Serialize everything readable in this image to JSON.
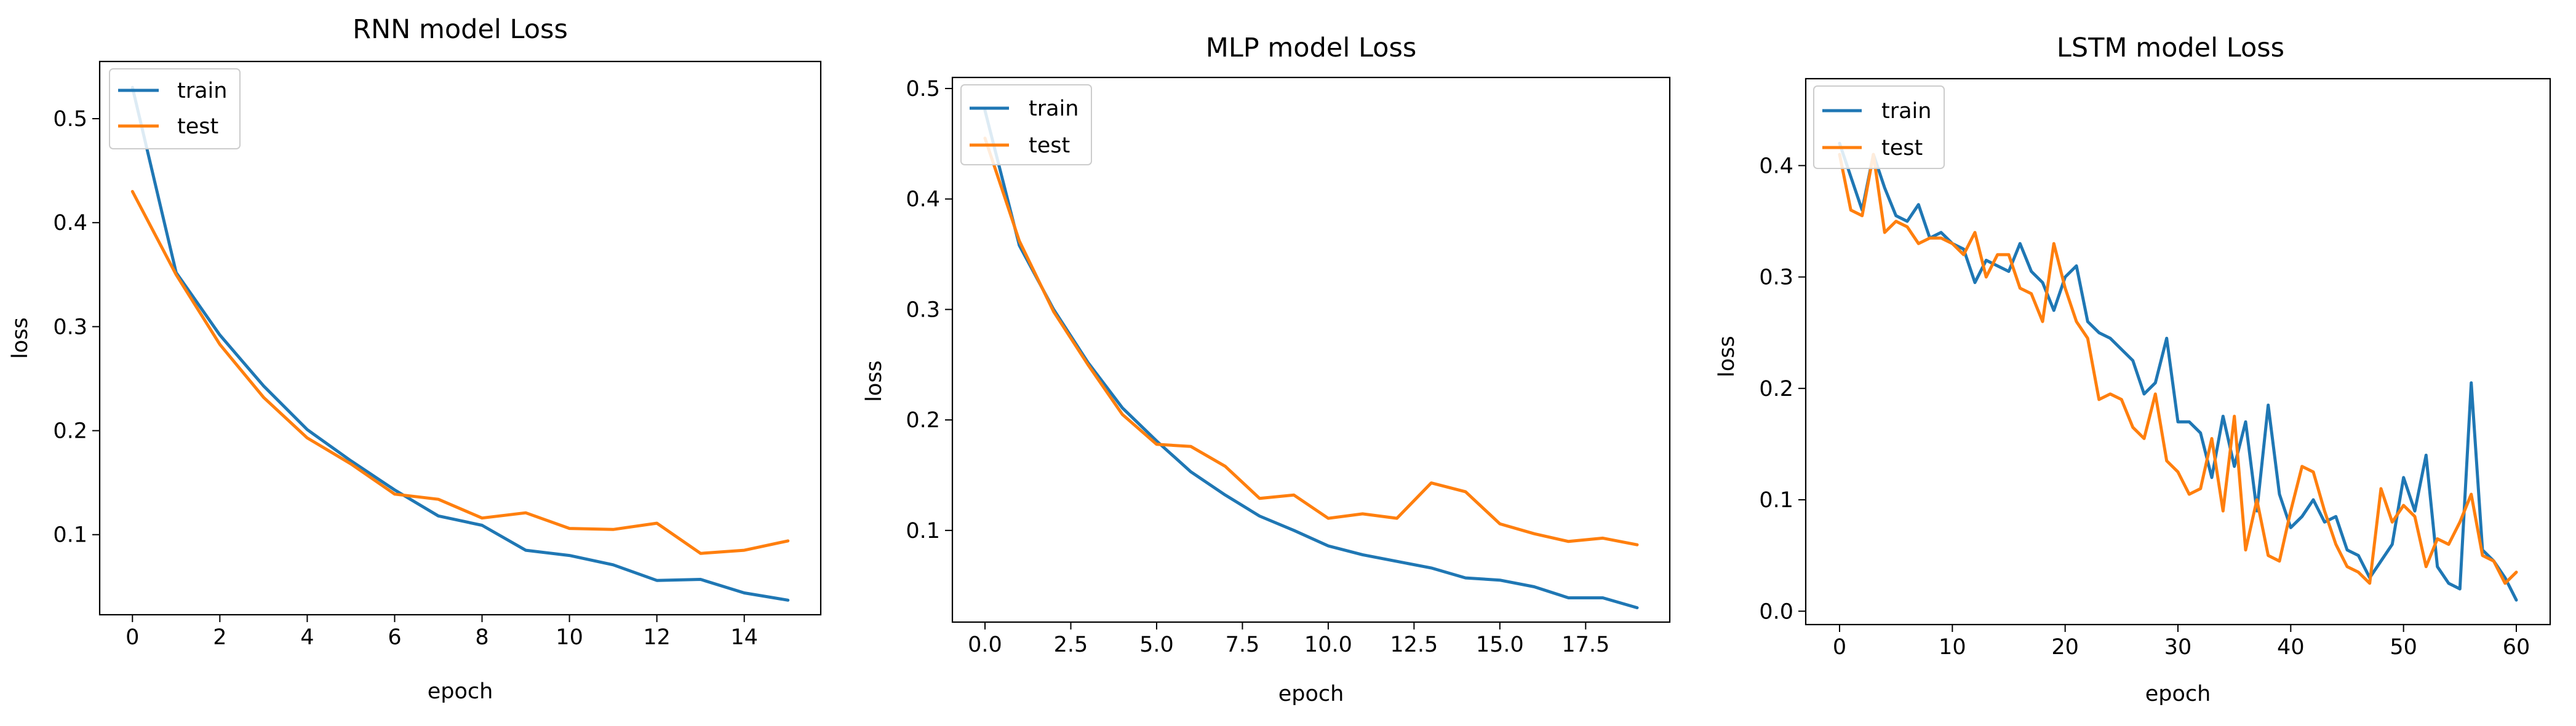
{
  "colors": {
    "train": "#1f77b4",
    "test": "#ff7f0e",
    "axes": "#000000",
    "background": "#ffffff"
  },
  "chart_data": [
    {
      "type": "line",
      "title": "RNN model Loss",
      "xlabel": "epoch",
      "ylabel": "loss",
      "xlim": [
        -0.75,
        15.75
      ],
      "ylim": [
        0.023,
        0.555
      ],
      "xticks": [
        0,
        2,
        4,
        6,
        8,
        10,
        12,
        14
      ],
      "xtick_labels": [
        "0",
        "2",
        "4",
        "6",
        "8",
        "10",
        "12",
        "14"
      ],
      "yticks": [
        0.1,
        0.2,
        0.3,
        0.4,
        0.5
      ],
      "ytick_labels": [
        "0.1",
        "0.2",
        "0.3",
        "0.4",
        "0.5"
      ],
      "legend": {
        "position": "upper-left",
        "entries": [
          "train",
          "test"
        ]
      },
      "grid": false,
      "x": [
        0,
        1,
        2,
        3,
        4,
        5,
        6,
        7,
        8,
        9,
        10,
        11,
        12,
        13,
        14,
        15
      ],
      "series": [
        {
          "name": "train",
          "values": [
            0.53,
            0.352,
            0.292,
            0.243,
            0.201,
            0.171,
            0.143,
            0.118,
            0.109,
            0.085,
            0.08,
            0.071,
            0.056,
            0.057,
            0.044,
            0.037
          ]
        },
        {
          "name": "test",
          "values": [
            0.43,
            0.35,
            0.283,
            0.232,
            0.193,
            0.168,
            0.139,
            0.134,
            0.116,
            0.121,
            0.106,
            0.105,
            0.111,
            0.082,
            0.085,
            0.094
          ]
        }
      ]
    },
    {
      "type": "line",
      "title": "MLP model Loss",
      "xlabel": "epoch",
      "ylabel": "loss",
      "xlim": [
        -0.95,
        19.95
      ],
      "ylim": [
        0.017,
        0.51
      ],
      "xticks": [
        0,
        2.5,
        5,
        7.5,
        10,
        12.5,
        15,
        17.5
      ],
      "xtick_labels": [
        "0.0",
        "2.5",
        "5.0",
        "7.5",
        "10.0",
        "12.5",
        "15.0",
        "17.5"
      ],
      "yticks": [
        0.1,
        0.2,
        0.3,
        0.4,
        0.5
      ],
      "ytick_labels": [
        "0.1",
        "0.2",
        "0.3",
        "0.4",
        "0.5"
      ],
      "legend": {
        "position": "upper-left",
        "entries": [
          "train",
          "test"
        ]
      },
      "grid": false,
      "x": [
        0,
        1,
        2,
        3,
        4,
        5,
        6,
        7,
        8,
        9,
        10,
        11,
        12,
        13,
        14,
        15,
        16,
        17,
        18,
        19
      ],
      "series": [
        {
          "name": "train",
          "values": [
            0.48,
            0.358,
            0.3,
            0.252,
            0.211,
            0.181,
            0.153,
            0.132,
            0.113,
            0.1,
            0.086,
            0.078,
            0.072,
            0.066,
            0.057,
            0.055,
            0.049,
            0.039,
            0.039,
            0.03
          ]
        },
        {
          "name": "test",
          "values": [
            0.455,
            0.362,
            0.298,
            0.25,
            0.205,
            0.178,
            0.176,
            0.158,
            0.129,
            0.132,
            0.111,
            0.115,
            0.111,
            0.143,
            0.135,
            0.106,
            0.097,
            0.09,
            0.093,
            0.087
          ]
        }
      ]
    },
    {
      "type": "line",
      "title": "LSTM model Loss",
      "xlabel": "epoch",
      "ylabel": "loss",
      "xlim": [
        -3.0,
        63.0
      ],
      "ylim": [
        -0.012,
        0.478
      ],
      "xticks": [
        0,
        10,
        20,
        30,
        40,
        50,
        60
      ],
      "xtick_labels": [
        "0",
        "10",
        "20",
        "30",
        "40",
        "50",
        "60"
      ],
      "yticks": [
        0.0,
        0.1,
        0.2,
        0.3,
        0.4
      ],
      "ytick_labels": [
        "0.0",
        "0.1",
        "0.2",
        "0.3",
        "0.4"
      ],
      "legend": {
        "position": "upper-left",
        "entries": [
          "train",
          "test"
        ]
      },
      "grid": false,
      "x": [
        0,
        1,
        2,
        3,
        4,
        5,
        6,
        7,
        8,
        9,
        10,
        11,
        12,
        13,
        14,
        15,
        16,
        17,
        18,
        19,
        20,
        21,
        22,
        23,
        24,
        25,
        26,
        27,
        28,
        29,
        30,
        31,
        32,
        33,
        34,
        35,
        36,
        37,
        38,
        39,
        40,
        41,
        42,
        43,
        44,
        45,
        46,
        47,
        48,
        49,
        50,
        51,
        52,
        53,
        54,
        55,
        56,
        57,
        58,
        59,
        60
      ],
      "series": [
        {
          "name": "train",
          "values": [
            0.42,
            0.39,
            0.36,
            0.41,
            0.38,
            0.355,
            0.35,
            0.365,
            0.335,
            0.34,
            0.33,
            0.325,
            0.295,
            0.315,
            0.31,
            0.305,
            0.33,
            0.305,
            0.295,
            0.27,
            0.3,
            0.31,
            0.26,
            0.25,
            0.245,
            0.235,
            0.225,
            0.195,
            0.205,
            0.245,
            0.17,
            0.17,
            0.16,
            0.12,
            0.175,
            0.13,
            0.17,
            0.09,
            0.185,
            0.105,
            0.075,
            0.085,
            0.1,
            0.08,
            0.085,
            0.055,
            0.05,
            0.03,
            0.045,
            0.06,
            0.12,
            0.09,
            0.14,
            0.04,
            0.025,
            0.02,
            0.205,
            0.055,
            0.045,
            0.03,
            0.01
          ]
        },
        {
          "name": "test",
          "values": [
            0.41,
            0.36,
            0.355,
            0.41,
            0.34,
            0.35,
            0.345,
            0.33,
            0.335,
            0.335,
            0.33,
            0.32,
            0.34,
            0.3,
            0.32,
            0.32,
            0.29,
            0.285,
            0.26,
            0.33,
            0.29,
            0.26,
            0.245,
            0.19,
            0.195,
            0.19,
            0.165,
            0.155,
            0.195,
            0.135,
            0.125,
            0.105,
            0.11,
            0.155,
            0.09,
            0.175,
            0.055,
            0.1,
            0.05,
            0.045,
            0.09,
            0.13,
            0.125,
            0.09,
            0.06,
            0.04,
            0.035,
            0.025,
            0.11,
            0.08,
            0.095,
            0.085,
            0.04,
            0.065,
            0.06,
            0.08,
            0.105,
            0.05,
            0.045,
            0.025,
            0.035
          ]
        }
      ]
    }
  ]
}
